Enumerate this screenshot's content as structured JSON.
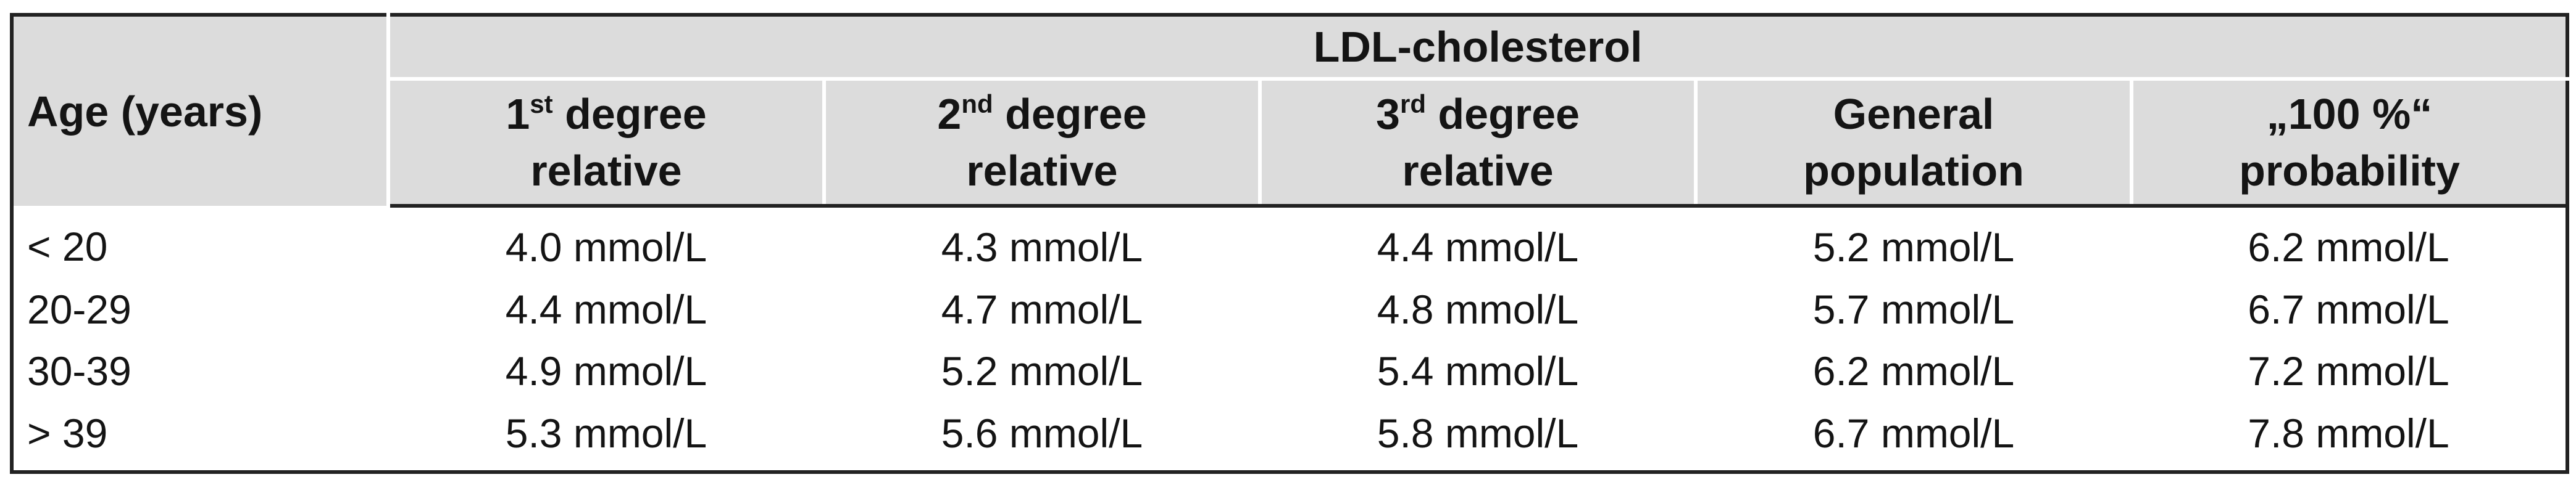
{
  "table": {
    "age_header": "Age (years)",
    "group_header": "LDL-cholesterol",
    "columns": [
      {
        "line1_pre": "1",
        "line1_sup": "st",
        "line1_post": " degree",
        "line2": "relative"
      },
      {
        "line1_pre": "2",
        "line1_sup": "nd",
        "line1_post": " degree",
        "line2": "relative"
      },
      {
        "line1_pre": "3",
        "line1_sup": "rd",
        "line1_post": " degree",
        "line2": "relative"
      },
      {
        "line1_pre": "General",
        "line1_sup": "",
        "line1_post": "",
        "line2": "population"
      },
      {
        "line1_pre": "„100 %“",
        "line1_sup": "",
        "line1_post": "",
        "line2": "probability"
      }
    ],
    "rows": [
      {
        "age": "< 20",
        "values": [
          "4.0 mmol/L",
          "4.3 mmol/L",
          "4.4 mmol/L",
          "5.2 mmol/L",
          "6.2 mmol/L"
        ]
      },
      {
        "age": "20-29",
        "values": [
          "4.4 mmol/L",
          "4.7 mmol/L",
          "4.8 mmol/L",
          "5.7 mmol/L",
          "6.7 mmol/L"
        ]
      },
      {
        "age": "30-39",
        "values": [
          "4.9 mmol/L",
          "5.2 mmol/L",
          "5.4 mmol/L",
          "6.2 mmol/L",
          "7.2 mmol/L"
        ]
      },
      {
        "age": "> 39",
        "values": [
          "5.3 mmol/L",
          "5.6 mmol/L",
          "5.8 mmol/L",
          "6.7 mmol/L",
          "7.8 mmol/L"
        ]
      }
    ]
  }
}
